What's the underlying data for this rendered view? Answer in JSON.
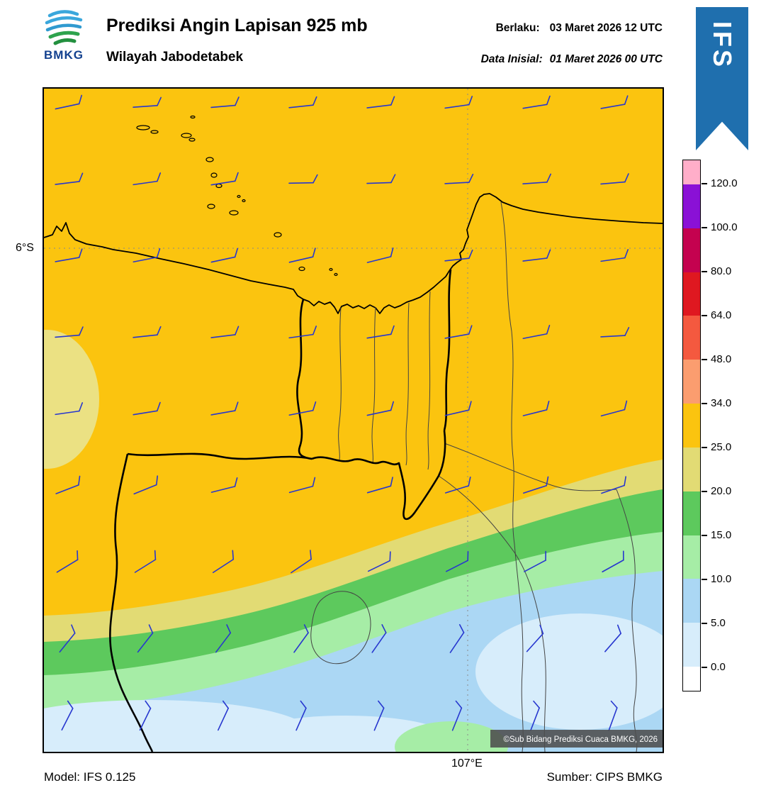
{
  "header": {
    "logo_text": "BMKG",
    "title": "Prediksi Angin Lapisan 925 mb",
    "subtitle": "Wilayah Jabodetabek",
    "valid_label": "Berlaku:",
    "valid_value": "03 Maret 2026 12 UTC",
    "initial_label": "Data Inisial:",
    "initial_value": "01 Maret 2026 00 UTC",
    "ribbon_text": "IFS"
  },
  "map": {
    "lat_tick": "6°S",
    "lon_tick": "107°E",
    "copyright": "©Sub Bidang Prediksi Cuaca BMKG, 2026"
  },
  "footer": {
    "model_text": "Model: IFS 0.125",
    "source_text": "Sumber: CIPS BMKG"
  },
  "wind_barbs": {
    "color": "#2737cf",
    "cols": 8,
    "rows": 9,
    "row_angles_deg": [
      -8,
      -5,
      -10,
      -7,
      -12,
      -18,
      -30,
      -52,
      -66
    ]
  },
  "chart_data": {
    "type": "heatmap",
    "title": "Prediksi Angin Lapisan 925 mb",
    "region": "Wilayah Jabodetabek",
    "valid_time": "03 Maret 2026 12 UTC",
    "initial_time": "01 Maret 2026 00 UTC",
    "model": "IFS 0.125",
    "source": "CIPS BMKG",
    "grid_lat_label": "6°S",
    "grid_lon_label": "107°E",
    "colorbar_labels_top_to_bottom": [
      "120.0",
      "100.0",
      "80.0",
      "64.0",
      "48.0",
      "34.0",
      "25.0",
      "20.0",
      "15.0",
      "10.0",
      "5.0",
      "0.0"
    ],
    "colorbar_colors_top_to_bottom": [
      "#ffaec9",
      "#8a11d6",
      "#c4024f",
      "#df1820",
      "#f4593f",
      "#fb9d6f",
      "#fbc40f",
      "#e2db74",
      "#5dc95d",
      "#a6eda6",
      "#abd7f4",
      "#d7edfb",
      "#ffffff"
    ],
    "field_summary": "Wind-speed shading in the 25.0-34.0 band (gold) over most of Jabodetabek, decreasing southward through the 20, 15 and 10 bands to 0-5 near the southern edge; blue wind barbs plotted on a regular grid"
  }
}
